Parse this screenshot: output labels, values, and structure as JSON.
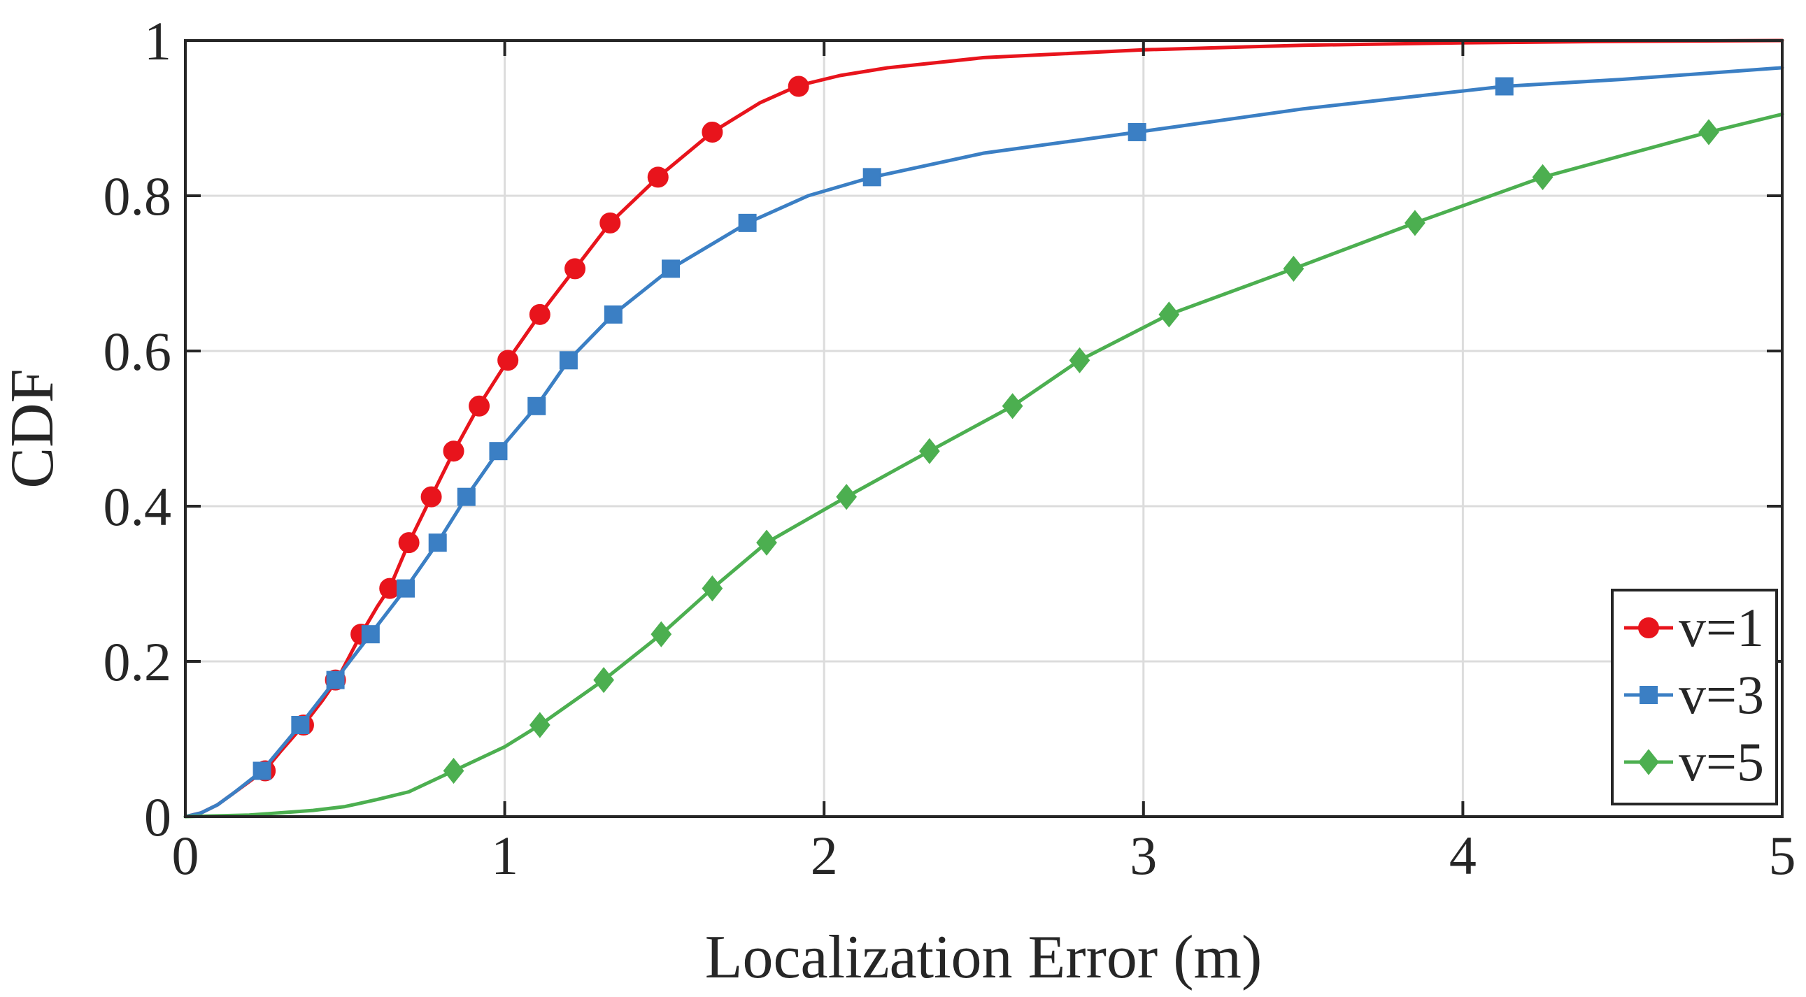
{
  "chart_data": {
    "type": "line",
    "xlabel": "Localization Error (m)",
    "ylabel": "CDF",
    "xlim": [
      0,
      5
    ],
    "ylim": [
      0,
      1
    ],
    "xticks": [
      0,
      1,
      2,
      3,
      4,
      5
    ],
    "yticks": [
      0,
      0.2,
      0.4,
      0.6,
      0.8,
      1
    ],
    "xtick_labels": [
      "0",
      "1",
      "2",
      "3",
      "4",
      "5"
    ],
    "ytick_labels": [
      "0",
      "0.2",
      "0.4",
      "0.6",
      "0.8",
      "1"
    ],
    "grid": true,
    "legend_position": "bottom-right",
    "series": [
      {
        "name": "v=1",
        "color": "#e8141c",
        "marker": "circle",
        "x": [
          0,
          0.05,
          0.1,
          0.15,
          0.2,
          0.25,
          0.3,
          0.37,
          0.43,
          0.48,
          0.55,
          0.6,
          0.64,
          0.7,
          0.77,
          0.84,
          0.92,
          1.01,
          1.11,
          1.22,
          1.33,
          1.48,
          1.65,
          1.8,
          1.92,
          2.05,
          2.2,
          2.5,
          3.0,
          3.5,
          4.0,
          4.5,
          5.0
        ],
        "y": [
          0,
          0.005,
          0.015,
          0.03,
          0.045,
          0.06,
          0.085,
          0.118,
          0.15,
          0.18,
          0.235,
          0.27,
          0.295,
          0.353,
          0.412,
          0.47,
          0.53,
          0.588,
          0.647,
          0.706,
          0.765,
          0.824,
          0.882,
          0.92,
          0.942,
          0.955,
          0.965,
          0.978,
          0.988,
          0.994,
          0.997,
          0.999,
          1.0
        ],
        "marker_x": [
          0.25,
          0.37,
          0.47,
          0.55,
          0.64,
          0.7,
          0.77,
          0.84,
          0.92,
          1.01,
          1.11,
          1.22,
          1.33,
          1.48,
          1.65,
          1.92
        ],
        "marker_y": [
          0.059,
          0.118,
          0.176,
          0.235,
          0.294,
          0.353,
          0.412,
          0.471,
          0.529,
          0.588,
          0.647,
          0.706,
          0.765,
          0.824,
          0.882,
          0.941
        ]
      },
      {
        "name": "v=3",
        "color": "#3b7fc4",
        "marker": "square",
        "x": [
          0,
          0.05,
          0.1,
          0.15,
          0.24,
          0.36,
          0.47,
          0.58,
          0.69,
          0.79,
          0.88,
          0.98,
          1.1,
          1.2,
          1.34,
          1.52,
          1.76,
          1.95,
          2.15,
          2.5,
          2.98,
          3.5,
          4.13,
          4.5,
          5.0
        ],
        "y": [
          0,
          0.005,
          0.015,
          0.03,
          0.059,
          0.118,
          0.176,
          0.235,
          0.294,
          0.353,
          0.412,
          0.471,
          0.529,
          0.588,
          0.647,
          0.706,
          0.765,
          0.8,
          0.824,
          0.855,
          0.882,
          0.912,
          0.941,
          0.95,
          0.965
        ],
        "marker_x": [
          0.24,
          0.36,
          0.47,
          0.58,
          0.69,
          0.79,
          0.88,
          0.98,
          1.1,
          1.2,
          1.34,
          1.52,
          1.76,
          2.15,
          2.98,
          4.13
        ],
        "marker_y": [
          0.059,
          0.118,
          0.176,
          0.235,
          0.294,
          0.353,
          0.412,
          0.471,
          0.529,
          0.588,
          0.647,
          0.706,
          0.765,
          0.824,
          0.882,
          0.941
        ]
      },
      {
        "name": "v=5",
        "color": "#4caf50",
        "marker": "diamond",
        "x": [
          0,
          0.2,
          0.4,
          0.5,
          0.6,
          0.7,
          0.84,
          1.0,
          1.11,
          1.31,
          1.49,
          1.65,
          1.82,
          2.07,
          2.33,
          2.59,
          2.8,
          3.08,
          3.47,
          3.85,
          4.25,
          4.77,
          5.0
        ],
        "y": [
          0,
          0.002,
          0.008,
          0.013,
          0.022,
          0.032,
          0.059,
          0.09,
          0.118,
          0.176,
          0.235,
          0.294,
          0.353,
          0.412,
          0.471,
          0.529,
          0.588,
          0.647,
          0.706,
          0.765,
          0.824,
          0.882,
          0.905
        ],
        "marker_x": [
          0.84,
          1.11,
          1.31,
          1.49,
          1.65,
          1.82,
          2.07,
          2.33,
          2.59,
          2.8,
          3.08,
          3.47,
          3.85,
          4.25,
          4.77
        ],
        "marker_y": [
          0.059,
          0.118,
          0.176,
          0.235,
          0.294,
          0.353,
          0.412,
          0.471,
          0.529,
          0.588,
          0.647,
          0.706,
          0.765,
          0.824,
          0.882
        ]
      }
    ]
  }
}
